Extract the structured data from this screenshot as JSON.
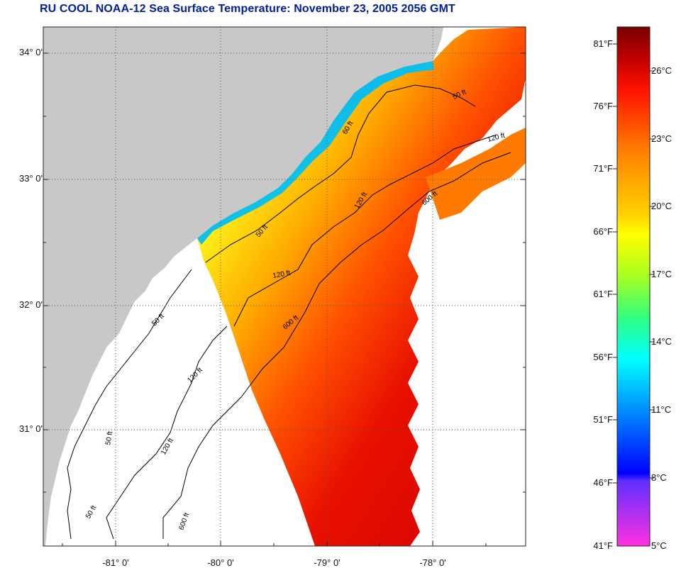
{
  "title": "RU COOL  NOAA-12  Sea Surface Temperature:  November 23, 2005 2056 GMT",
  "map": {
    "lat_labels": [
      "34° 0'",
      "33° 0'",
      "32° 0'",
      "31° 0'"
    ],
    "lon_labels": [
      "-81° 0'",
      "-80° 0'",
      "-79° 0'",
      "-78° 0'"
    ],
    "contour_labels": [
      "50 ft",
      "60 ft",
      "120 ft",
      "600 ft",
      "50 ft",
      "120 ft",
      "600 ft",
      "50 ft",
      "120 ft",
      "50 ft",
      "120 ft",
      "600 ft",
      "120 ft",
      "50 ft"
    ],
    "colors": {
      "land": "#c8c8c8",
      "cloud_or_no_data": "#ffffff",
      "contour": "#000000",
      "grid": "#555555"
    }
  },
  "color_scale": {
    "fahrenheit": [
      "81°F",
      "76°F",
      "71°F",
      "66°F",
      "61°F",
      "56°F",
      "51°F",
      "46°F",
      "41°F"
    ],
    "celsius": [
      "26°C",
      "23°C",
      "20°C",
      "17°C",
      "14°C",
      "11°C",
      "8°C",
      "5°C"
    ]
  }
}
